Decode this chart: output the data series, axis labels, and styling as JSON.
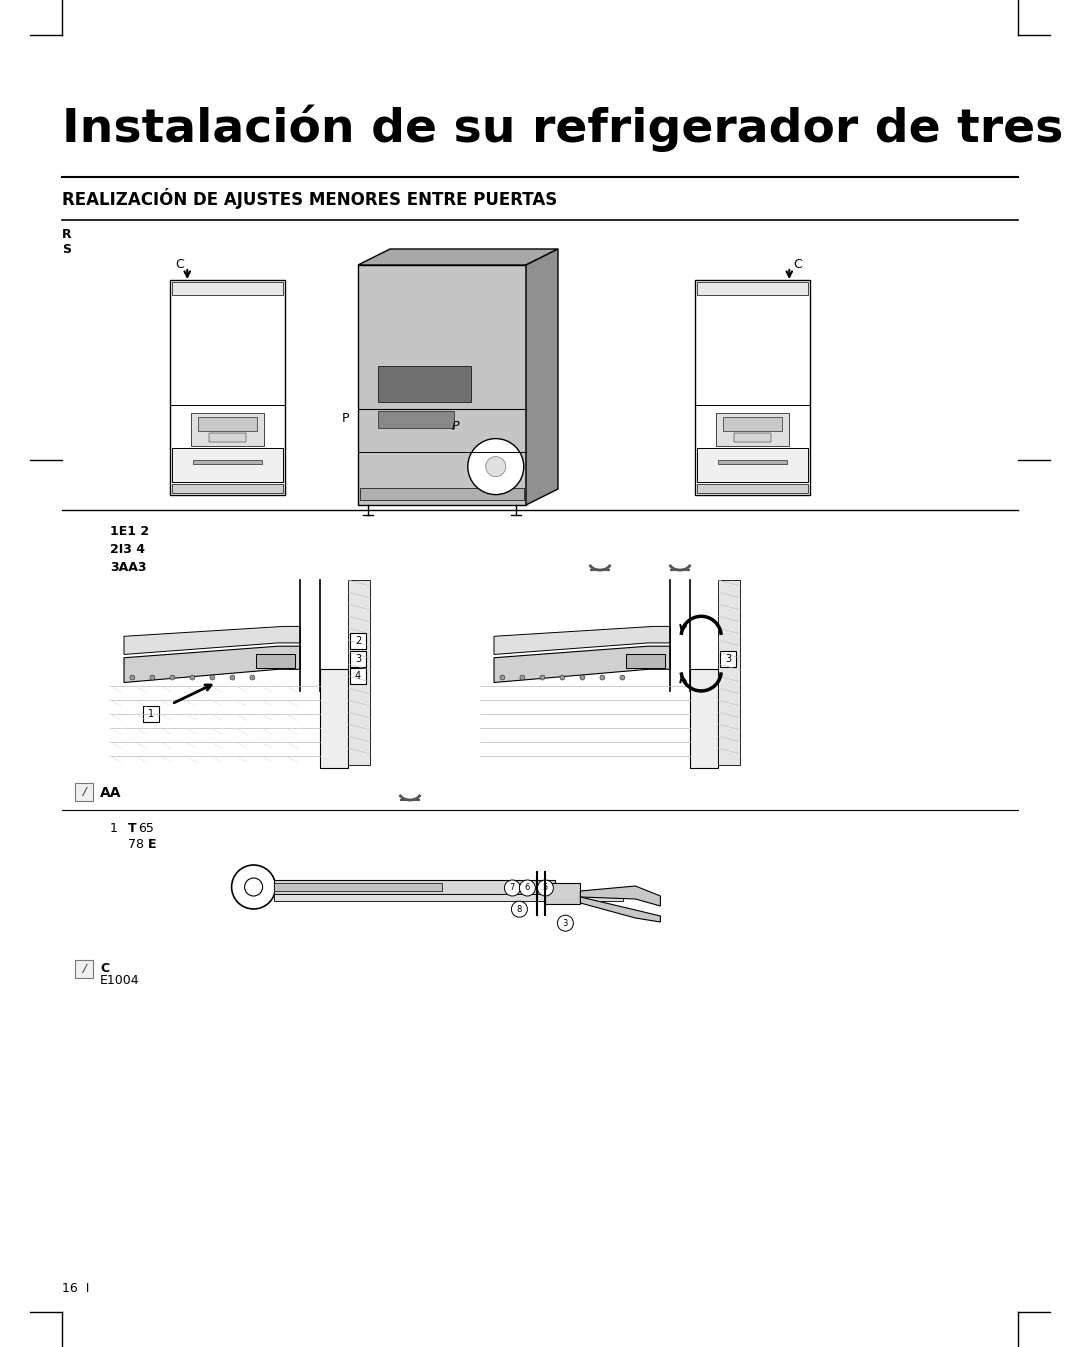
{
  "title": "Instalación de su refrigerador de tres puertas",
  "section_title": "REALIZACIÓN DE AJUSTES MENORES ENTRE PUERTAS",
  "bg_color": "#ffffff",
  "text_color": "#000000",
  "title_fontsize": 34,
  "section_fontsize": 12,
  "body_fontsize": 9,
  "page_number": "16  I",
  "line1": "1E1 2",
  "line2": "2I3 4",
  "line3": "3AA3",
  "note1_label": "AA",
  "note2_label1": "C",
  "note2_label2": "E1004",
  "list2_line1": "1",
  "list2_t": "T",
  "list2_65": "65",
  "list2_78": "78",
  "list2_E": "E"
}
